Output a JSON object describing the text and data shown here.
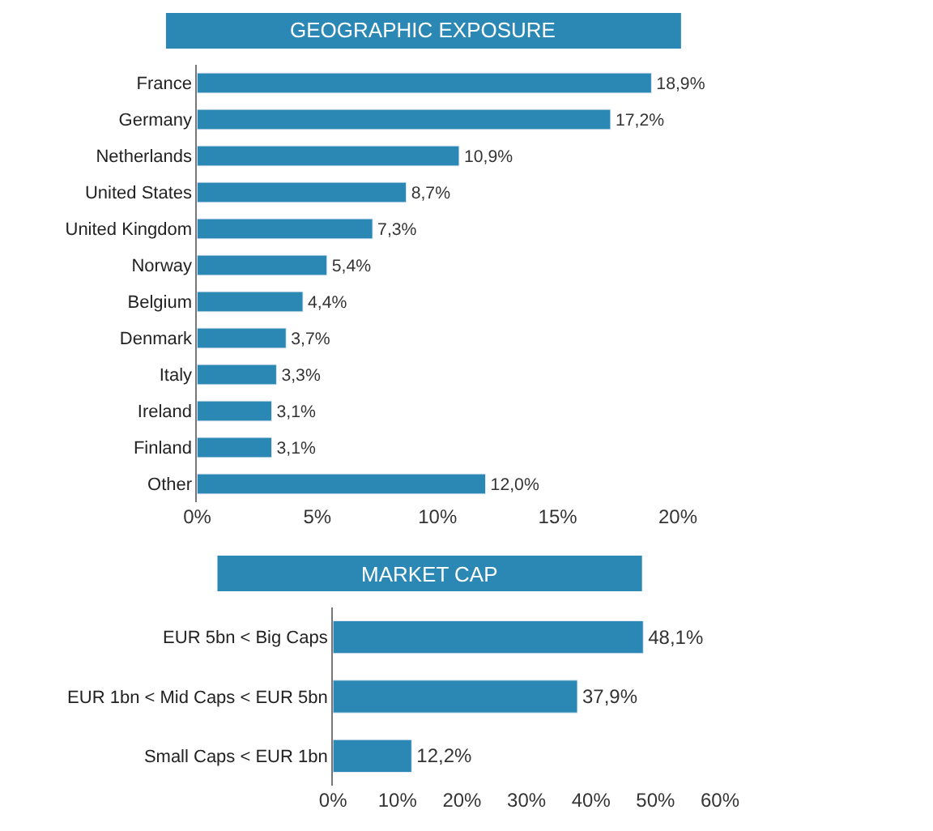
{
  "chart_data": [
    {
      "type": "bar",
      "orientation": "horizontal",
      "title": "GEOGRAPHIC EXPOSURE",
      "categories": [
        "France",
        "Germany",
        "Netherlands",
        "United States",
        "United Kingdom",
        "Norway",
        "Belgium",
        "Denmark",
        "Italy",
        "Ireland",
        "Finland",
        "Other"
      ],
      "values": [
        18.9,
        17.2,
        10.9,
        8.7,
        7.3,
        5.4,
        4.4,
        3.7,
        3.3,
        3.1,
        3.1,
        12.0
      ],
      "value_labels": [
        "18,9%",
        "17,2%",
        "10,9%",
        "8,7%",
        "7,3%",
        "5,4%",
        "4,4%",
        "3,7%",
        "3,3%",
        "3,1%",
        "3,1%",
        "12,0%"
      ],
      "color": "#2b87b3",
      "xlim": [
        0,
        20
      ],
      "xticks": [
        {
          "value": 0,
          "label": "0%"
        },
        {
          "value": 5,
          "label": "5%"
        },
        {
          "value": 10,
          "label": "10%"
        },
        {
          "value": 15,
          "label": "15%"
        },
        {
          "value": 20,
          "label": "20%"
        }
      ],
      "grid": false,
      "legend": false
    },
    {
      "type": "bar",
      "orientation": "horizontal",
      "title": "MARKET CAP",
      "categories": [
        "EUR 5bn < Big Caps",
        "EUR 1bn < Mid Caps < EUR 5bn",
        "Small Caps < EUR 1bn"
      ],
      "values": [
        48.1,
        37.9,
        12.2
      ],
      "value_labels": [
        "48,1%",
        "37,9%",
        "12,2%"
      ],
      "color": "#2b87b3",
      "xlim": [
        0,
        60
      ],
      "xticks": [
        {
          "value": 0,
          "label": "0%"
        },
        {
          "value": 10,
          "label": "10%"
        },
        {
          "value": 20,
          "label": "20%"
        },
        {
          "value": 30,
          "label": "30%"
        },
        {
          "value": 40,
          "label": "40%"
        },
        {
          "value": 50,
          "label": "50%"
        },
        {
          "value": 60,
          "label": "60%"
        }
      ],
      "grid": false,
      "legend": false
    }
  ]
}
